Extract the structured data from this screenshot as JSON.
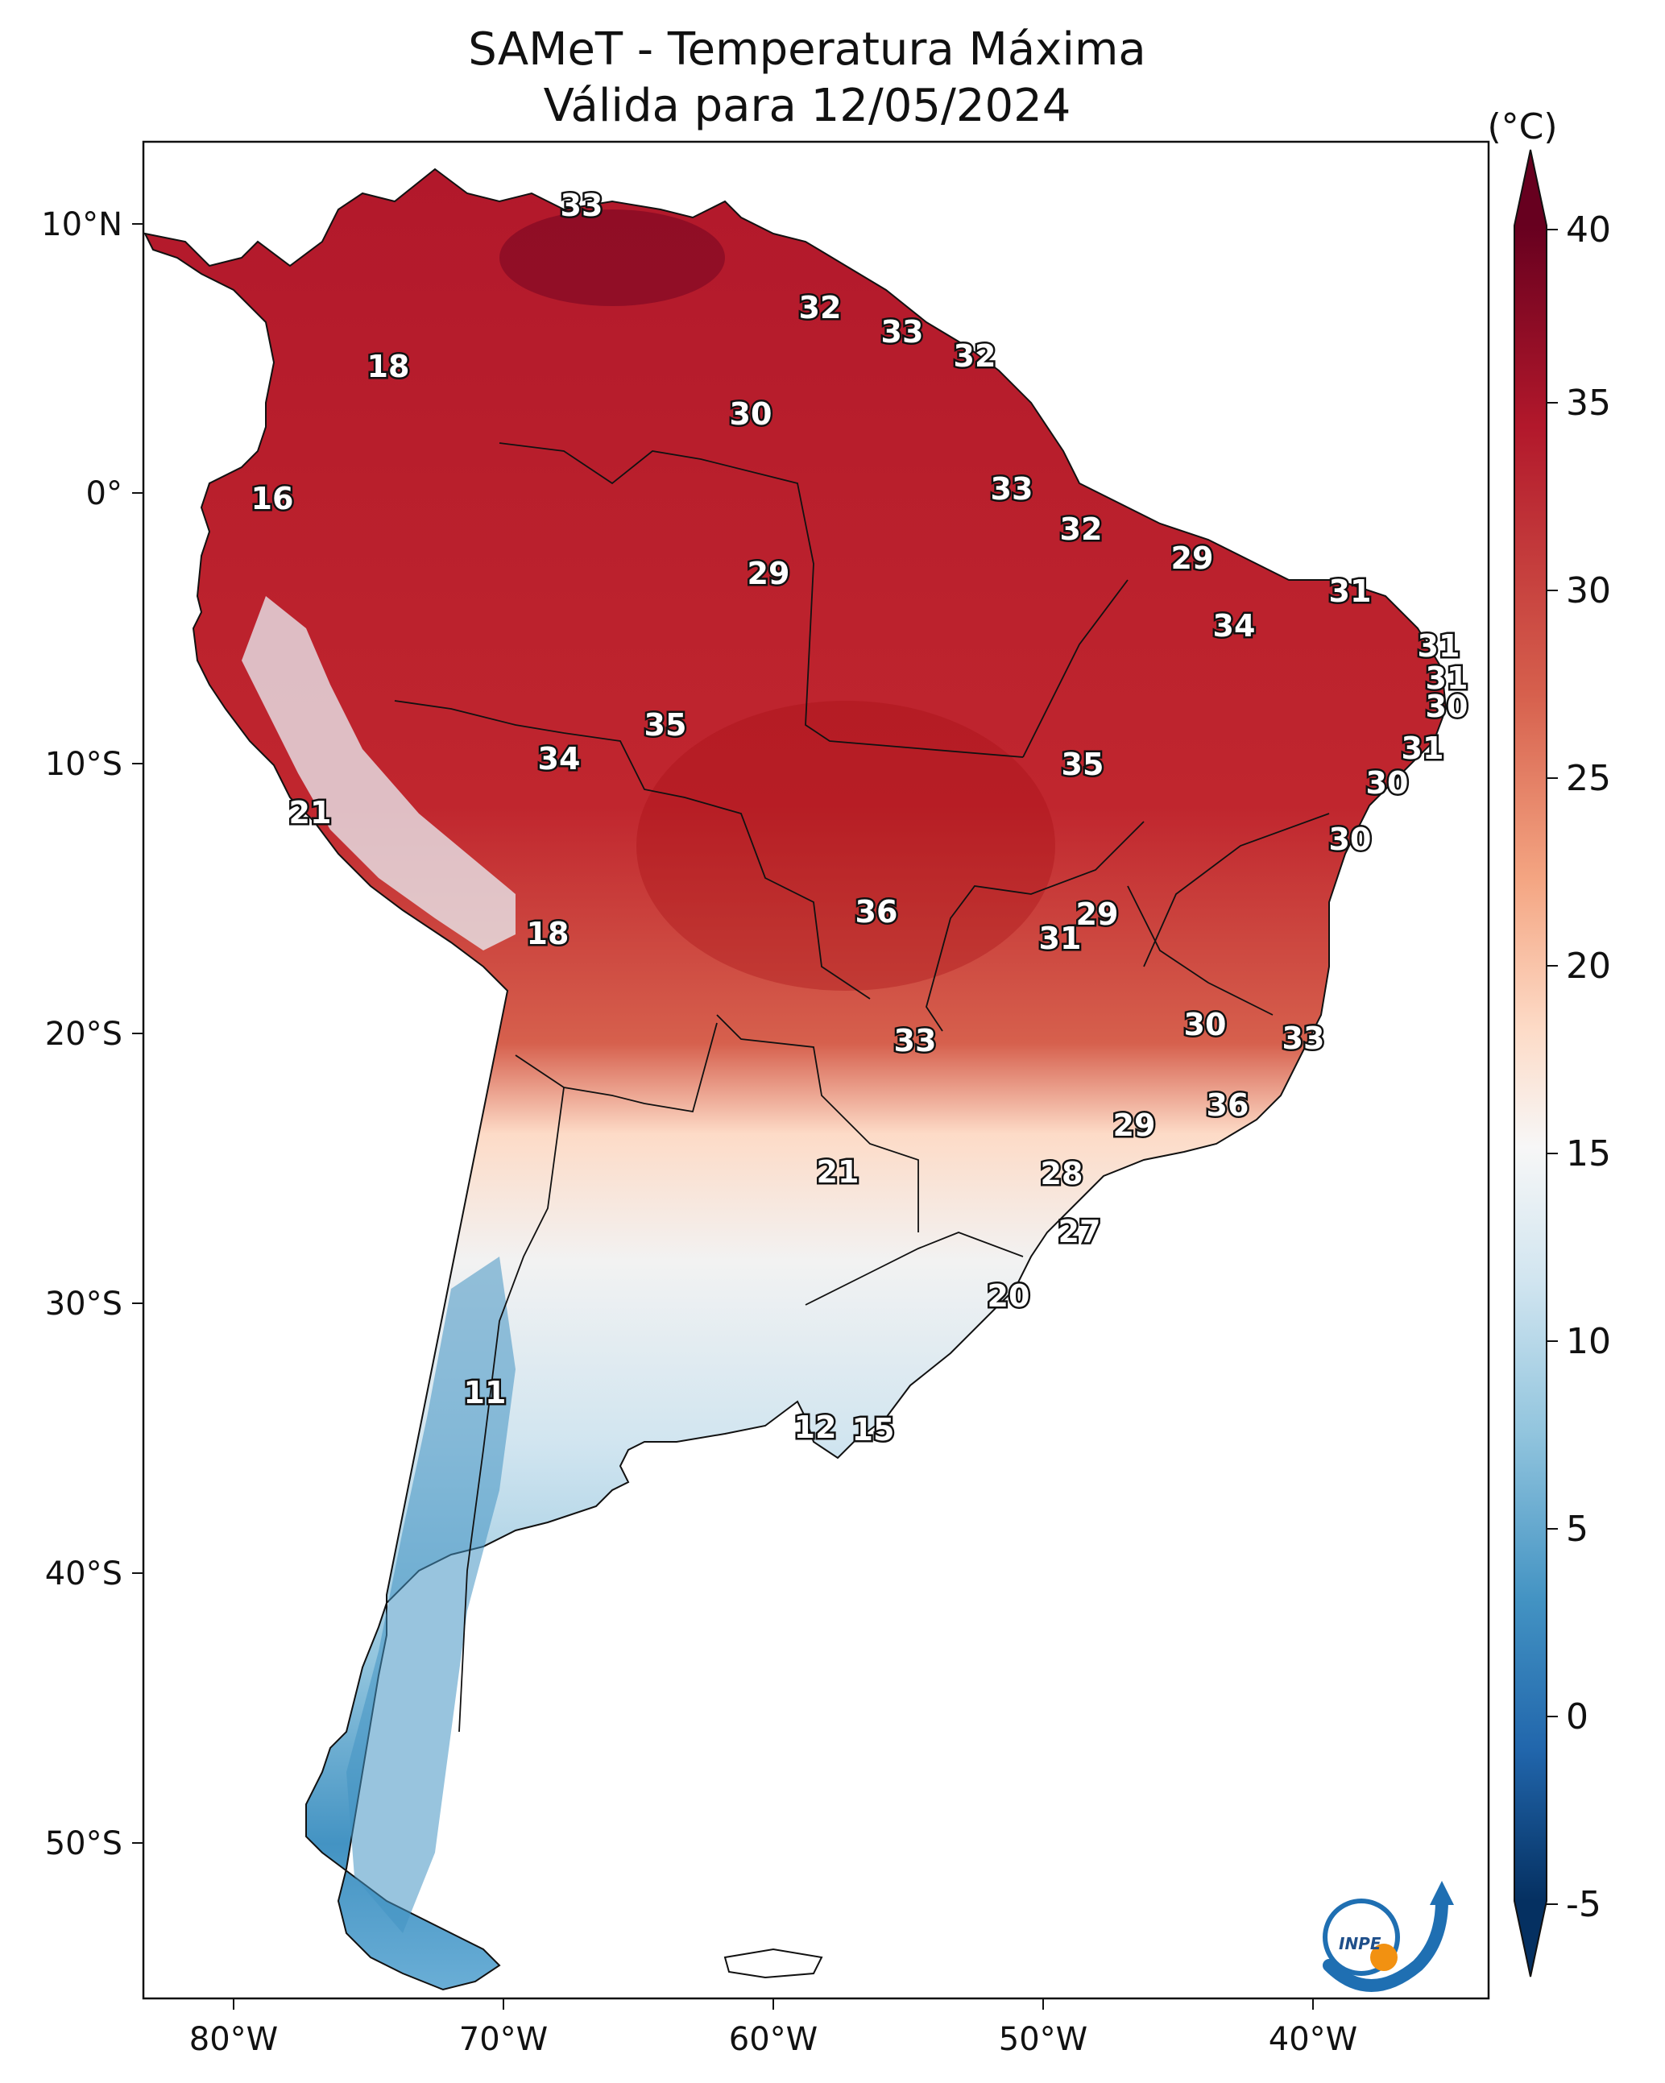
{
  "title_line1": "SAMeT - Temperatura Máxima",
  "title_line2": "Válida para 12/05/2024",
  "colorbar": {
    "unit": "(°C)",
    "ticks": [
      "40",
      "35",
      "30",
      "25",
      "20",
      "15",
      "10",
      "5",
      "0",
      "-5"
    ],
    "colors": [
      "#67001f",
      "#b2182b",
      "#d6604d",
      "#f4a582",
      "#fddbc7",
      "#f7f7f7",
      "#d1e5f0",
      "#92c5de",
      "#4393c3",
      "#2166ac",
      "#053061"
    ]
  },
  "axes": {
    "lat_labels": [
      "10°N",
      "0°",
      "10°S",
      "20°S",
      "30°S",
      "40°S",
      "50°S"
    ],
    "lon_labels": [
      "80°W",
      "70°W",
      "60°W",
      "50°W",
      "40°W"
    ]
  },
  "map_labels": [
    "33",
    "32",
    "33",
    "32",
    "18",
    "30",
    "16",
    "33",
    "32",
    "29",
    "29",
    "31",
    "34",
    "31",
    "31",
    "30",
    "35",
    "34",
    "35",
    "31",
    "30",
    "21",
    "30",
    "18",
    "36",
    "29",
    "31",
    "30",
    "33",
    "33",
    "36",
    "29",
    "21",
    "28",
    "27",
    "20",
    "11",
    "12",
    "15"
  ],
  "logo": {
    "text": "INPE"
  }
}
